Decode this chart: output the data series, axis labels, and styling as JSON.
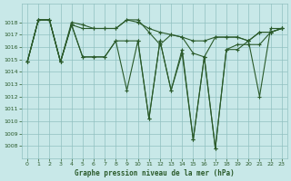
{
  "title": "Graphe pression niveau de la mer (hPa)",
  "x_ticks": [
    0,
    1,
    2,
    3,
    4,
    5,
    6,
    7,
    8,
    9,
    10,
    11,
    12,
    13,
    14,
    15,
    16,
    17,
    18,
    19,
    20,
    21,
    22,
    23
  ],
  "ylim": [
    1007.0,
    1019.5
  ],
  "xlim": [
    -0.5,
    23.5
  ],
  "yticks": [
    1008,
    1009,
    1010,
    1011,
    1012,
    1013,
    1014,
    1015,
    1016,
    1017,
    1018
  ],
  "bg_color": "#c8e8e8",
  "grid_color": "#90c0c0",
  "line_color": "#2a5a2a",
  "series": [
    [
      1014.8,
      1018.2,
      1018.2,
      1014.8,
      1018.0,
      1017.8,
      1017.5,
      1017.5,
      1017.5,
      1018.2,
      1018.0,
      1017.5,
      1017.2,
      1017.0,
      1016.8,
      1016.5,
      1016.5,
      1016.8,
      1016.8,
      1016.8,
      1016.5,
      1017.2,
      1017.2,
      1017.5
    ],
    [
      1014.8,
      1018.2,
      1018.2,
      1014.8,
      1017.8,
      1017.5,
      1017.5,
      1017.5,
      1017.5,
      1018.2,
      1018.2,
      1017.2,
      1016.2,
      1017.0,
      1016.8,
      1015.5,
      1015.2,
      1016.8,
      1016.8,
      1016.8,
      1016.5,
      1017.2,
      1017.2,
      1017.5
    ],
    [
      1014.8,
      1018.2,
      1018.2,
      1014.8,
      1017.8,
      1015.2,
      1015.2,
      1015.2,
      1016.5,
      1016.5,
      1016.5,
      1010.2,
      1016.5,
      1012.5,
      1015.8,
      1008.5,
      1015.2,
      1007.8,
      1015.8,
      1016.2,
      1016.2,
      1016.2,
      1017.2,
      1017.5
    ],
    [
      1014.8,
      1018.2,
      1018.2,
      1014.8,
      1017.8,
      1015.2,
      1015.2,
      1015.2,
      1016.5,
      1012.5,
      1016.5,
      1010.2,
      1016.5,
      1012.5,
      1015.5,
      1008.5,
      1015.2,
      1007.8,
      1015.8,
      1015.8,
      1016.5,
      1012.0,
      1017.5,
      1017.5
    ]
  ]
}
